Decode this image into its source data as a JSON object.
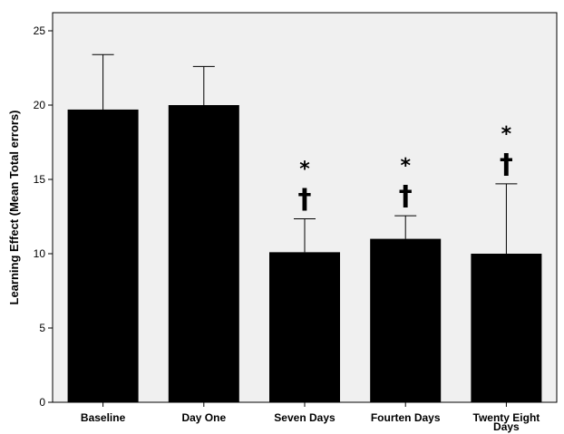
{
  "chart_data": {
    "type": "bar",
    "categories": [
      "Baseline",
      "Day One",
      "Seven Days",
      "Fourten Days",
      "Twenty Eight Days"
    ],
    "category_lines": [
      [
        "Baseline"
      ],
      [
        "Day One"
      ],
      [
        "Seven Days"
      ],
      [
        "Fourten Days"
      ],
      [
        "Twenty Eight",
        "Days"
      ]
    ],
    "values": [
      19.7,
      20.0,
      10.1,
      11.0,
      10.0
    ],
    "error_upper": [
      23.4,
      22.6,
      12.35,
      12.55,
      14.7
    ],
    "significance": [
      [],
      [],
      [
        "*",
        "†"
      ],
      [
        "*",
        "†"
      ],
      [
        "*",
        "†"
      ]
    ],
    "title": "",
    "xlabel": "",
    "ylabel": "Learning Effect (Mean Total errors)",
    "ylim": [
      0,
      25
    ],
    "yticks": [
      0,
      5,
      10,
      15,
      20,
      25
    ],
    "grid": false,
    "legend": "none",
    "colors": {
      "bar": "#000000",
      "plot_background": "#f0f0f0",
      "page_background": "#ffffff",
      "axis": "#000000"
    }
  }
}
